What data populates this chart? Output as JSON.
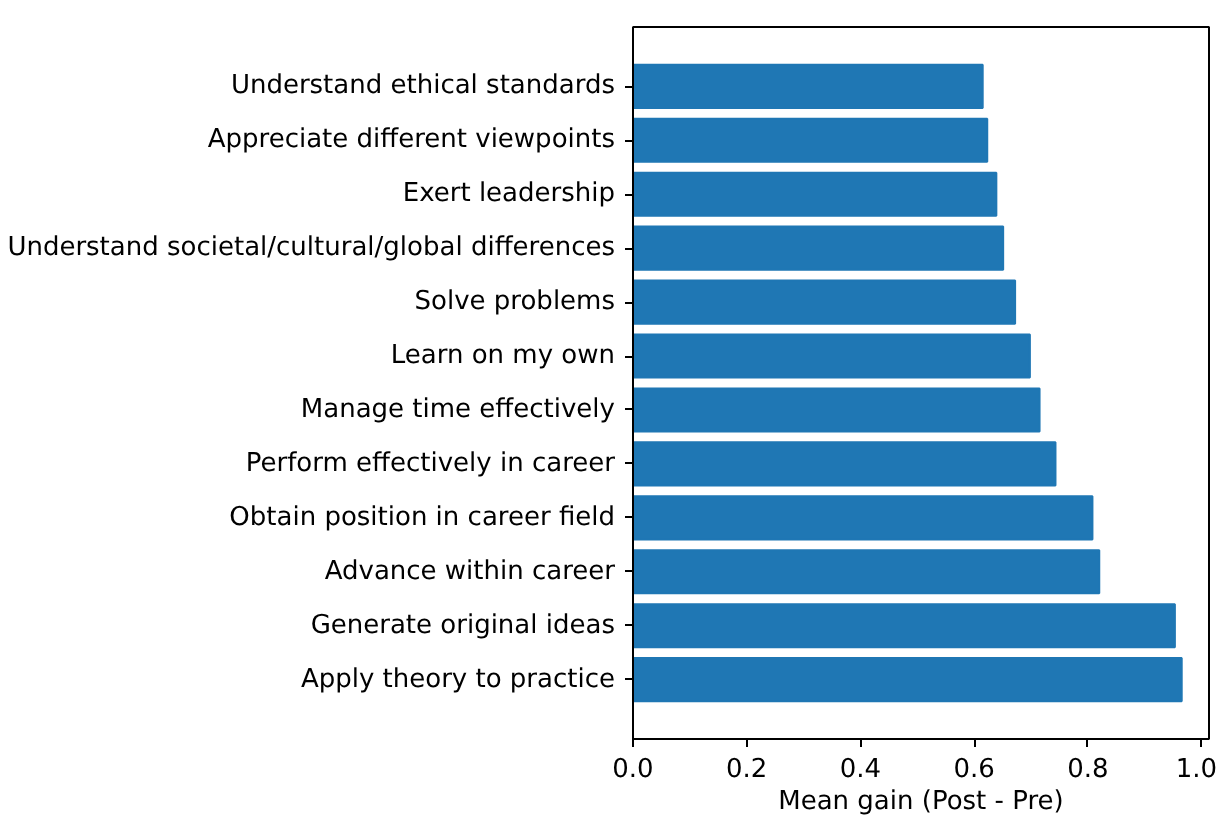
{
  "chart_data": {
    "type": "bar",
    "orientation": "horizontal",
    "xlabel": "Mean gain (Post - Pre)",
    "categories": [
      "Understand ethical standards",
      "Appreciate different viewpoints",
      "Exert leadership",
      "Understand societal/cultural/global differences",
      "Solve problems",
      "Learn on my own",
      "Manage time effectively",
      "Perform effectively in career",
      "Obtain position in career field",
      "Advance within career",
      "Generate original ideas",
      "Apply theory to practice"
    ],
    "values": [
      0.615,
      0.623,
      0.639,
      0.651,
      0.672,
      0.698,
      0.715,
      0.743,
      0.808,
      0.82,
      0.953,
      0.965
    ],
    "color": "#1f77b4",
    "xlim": [
      0,
      1.013
    ],
    "xticks": [
      {
        "value": 0,
        "label": "0.0"
      },
      0.2,
      0.4,
      0.6,
      0.8,
      {
        "value": 1,
        "label": "1.0"
      }
    ],
    "grid": false
  }
}
